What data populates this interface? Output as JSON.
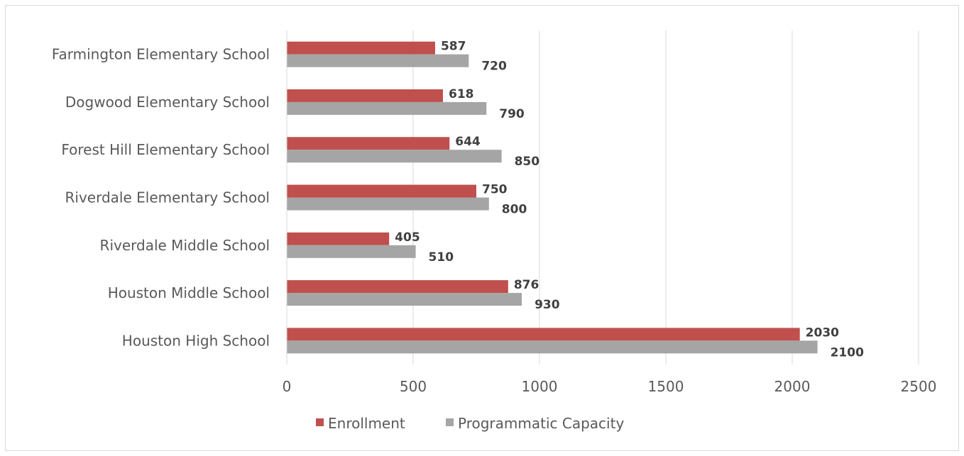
{
  "chart_data": {
    "type": "bar",
    "orientation": "horizontal",
    "categories": [
      "Farmington Elementary School",
      "Dogwood Elementary School",
      "Forest Hill Elementary School",
      "Riverdale Elementary School",
      "Riverdale Middle School",
      "Houston Middle School",
      "Houston High School"
    ],
    "series": [
      {
        "name": "Enrollment",
        "color": "#c0504d",
        "values": [
          587,
          618,
          644,
          750,
          405,
          876,
          2030
        ]
      },
      {
        "name": "Programmatic Capacity",
        "color": "#a5a5a5",
        "values": [
          720,
          790,
          850,
          800,
          510,
          930,
          2100
        ]
      }
    ],
    "xlim": [
      0,
      2500
    ],
    "xticks": [
      "0",
      "500",
      "1000",
      "1500",
      "2000",
      "2500"
    ],
    "grid": "vertical",
    "legend": "bottom",
    "data_labels": true
  }
}
